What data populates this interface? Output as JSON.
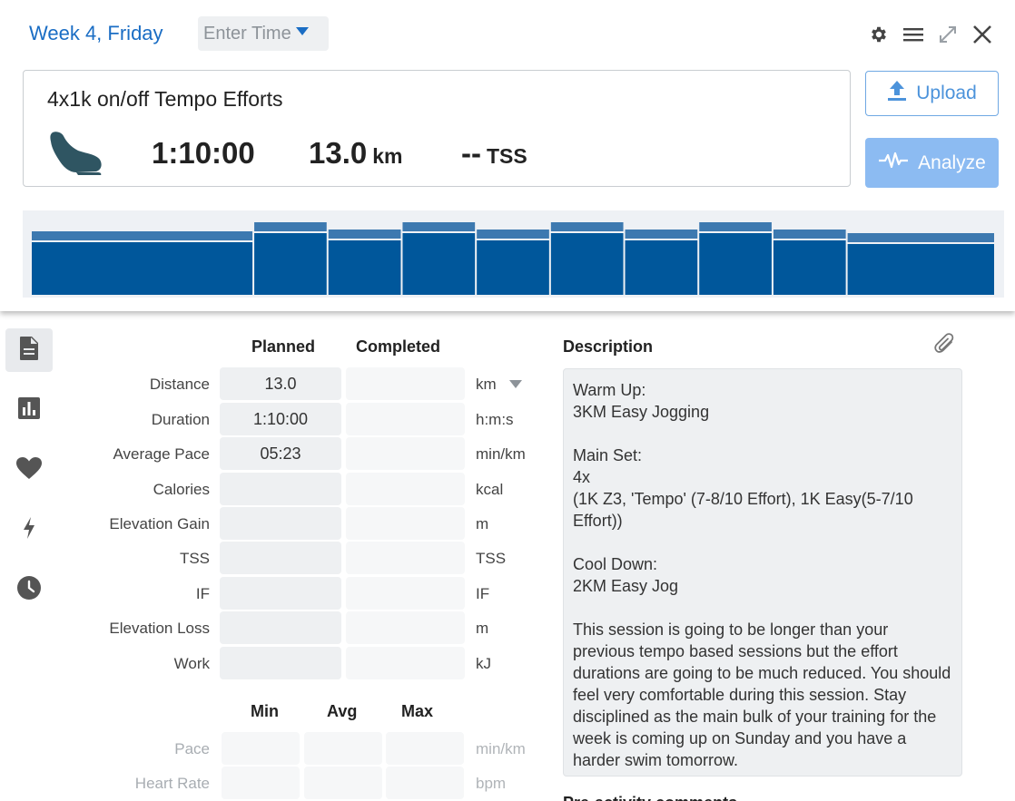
{
  "header": {
    "day_title": "Week 4, Friday",
    "time_placeholder": "Enter Time",
    "icons": [
      "gear-icon",
      "menu-icon",
      "expand-icon",
      "close-icon"
    ]
  },
  "workout": {
    "title": "4x1k on/off Tempo Efforts",
    "sport_icon": "running-shoe-icon",
    "duration": "1:10:00",
    "distance": "13.0",
    "distance_unit": "km",
    "tss": "--",
    "tss_unit": "TSS"
  },
  "actions": {
    "upload_label": "Upload",
    "analyze_label": "Analyze"
  },
  "intensity_graph": {
    "color": "#00579b",
    "blocks": [
      {
        "duration_units": 3,
        "intensity": 0.7
      },
      {
        "duration_units": 1,
        "intensity": 0.8
      },
      {
        "duration_units": 1,
        "intensity": 0.72
      },
      {
        "duration_units": 1,
        "intensity": 0.8
      },
      {
        "duration_units": 1,
        "intensity": 0.72
      },
      {
        "duration_units": 1,
        "intensity": 0.8
      },
      {
        "duration_units": 1,
        "intensity": 0.72
      },
      {
        "duration_units": 1,
        "intensity": 0.8
      },
      {
        "duration_units": 1,
        "intensity": 0.72
      },
      {
        "duration_units": 2,
        "intensity": 0.68
      }
    ]
  },
  "sidenav": [
    {
      "icon": "document-icon",
      "active": true
    },
    {
      "icon": "bar-chart-icon",
      "active": false
    },
    {
      "icon": "heart-icon",
      "active": false
    },
    {
      "icon": "lightning-icon",
      "active": false
    },
    {
      "icon": "clock-icon",
      "active": false
    }
  ],
  "metrics": {
    "planned_header": "Planned",
    "completed_header": "Completed",
    "rows": [
      {
        "label": "Distance",
        "planned": "13.0",
        "completed": "",
        "unit": "km"
      },
      {
        "label": "Duration",
        "planned": "1:10:00",
        "completed": "",
        "unit": "h:m:s"
      },
      {
        "label": "Average Pace",
        "planned": "05:23",
        "completed": "",
        "unit": "min/km"
      },
      {
        "label": "Calories",
        "planned": "",
        "completed": "",
        "unit": "kcal"
      },
      {
        "label": "Elevation Gain",
        "planned": "",
        "completed": "",
        "unit": "m"
      },
      {
        "label": "TSS",
        "planned": "",
        "completed": "",
        "unit": "TSS"
      },
      {
        "label": "IF",
        "planned": "",
        "completed": "",
        "unit": "IF"
      },
      {
        "label": "Elevation Loss",
        "planned": "",
        "completed": "",
        "unit": "m"
      },
      {
        "label": "Work",
        "planned": "",
        "completed": "",
        "unit": "kJ"
      }
    ]
  },
  "minmax": {
    "min_header": "Min",
    "avg_header": "Avg",
    "max_header": "Max",
    "rows": [
      {
        "label": "Pace",
        "unit": "min/km"
      },
      {
        "label": "Heart Rate",
        "unit": "bpm"
      }
    ]
  },
  "description": {
    "heading": "Description",
    "text": "Warm Up:\n3KM Easy Jogging\n\nMain Set:\n4x\n(1K Z3, 'Tempo' (7-8/10 Effort), 1K Easy(5-7/10 Effort))\n\nCool Down:\n2KM Easy Jog\n\nThis session is going to be longer than your previous tempo based sessions but the effort durations are going to be much reduced. You should feel very comfortable during this session. Stay disciplined as the main bulk of your training for the week is coming up on Sunday and you have a harder swim tomorrow.",
    "next_heading": "Pre-activity comments"
  }
}
